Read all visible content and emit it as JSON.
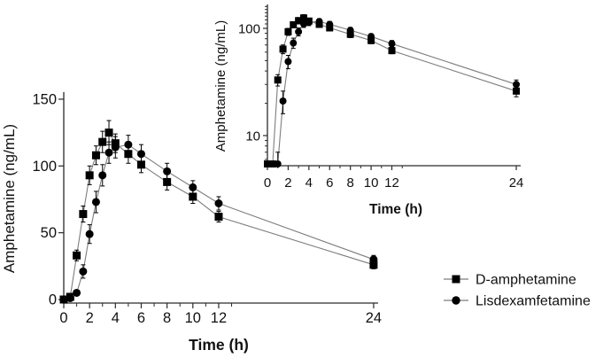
{
  "figure": {
    "background": "#ffffff"
  },
  "chart_data": [
    {
      "id": "main",
      "type": "line",
      "scale": "linear",
      "title": "",
      "xlabel": "Time (h)",
      "ylabel": "Amphetamine (ng/mL)",
      "xlim": [
        0,
        24.3
      ],
      "ylim": [
        0,
        150
      ],
      "x_ticks_major": [
        0,
        2,
        4,
        6,
        8,
        10,
        12,
        24
      ],
      "x_ticks_minor": [
        1,
        3,
        5,
        7,
        9,
        11,
        13
      ],
      "y_ticks_major": [
        0,
        50,
        100,
        150
      ],
      "y_ticks_minor": [],
      "grid": false,
      "x": [
        0,
        0.5,
        1,
        1.5,
        2,
        2.5,
        3,
        3.5,
        4,
        5,
        6,
        8,
        10,
        12,
        24
      ],
      "series": [
        {
          "name": "D-amphetamine",
          "marker": "square",
          "values": [
            0,
            2,
            33,
            64,
            93,
            108,
            118,
            125,
            117,
            109,
            101,
            88,
            77,
            62,
            26
          ],
          "errors": [
            0,
            1,
            4,
            6,
            7,
            7,
            8,
            9,
            7,
            7,
            6,
            6,
            5,
            4,
            3
          ]
        },
        {
          "name": "Lisdexamfetamine",
          "marker": "circle",
          "values": [
            0,
            1,
            5,
            21,
            49,
            73,
            93,
            110,
            114,
            116,
            109,
            96,
            84,
            72,
            30
          ],
          "errors": [
            0,
            1,
            2,
            5,
            7,
            8,
            8,
            8,
            8,
            7,
            7,
            6,
            5,
            5,
            3
          ]
        }
      ]
    },
    {
      "id": "inset",
      "type": "line",
      "scale": "log",
      "title": "",
      "xlabel": "Time (h)",
      "ylabel": "Amphetamine (ng/mL)",
      "xlim": [
        0,
        24.4
      ],
      "ylim": [
        5,
        170
      ],
      "x_ticks_major": [
        0,
        2,
        4,
        6,
        8,
        10,
        12,
        24
      ],
      "x_ticks_minor": [
        1,
        3,
        5,
        7,
        9,
        11,
        13
      ],
      "y_ticks_major": [
        10,
        100
      ],
      "y_ticks_minor": [
        6,
        7,
        8,
        9,
        20,
        30,
        40,
        50,
        60,
        70,
        80,
        90,
        110,
        120,
        130,
        140,
        150,
        160
      ],
      "grid": false,
      "x": [
        0,
        0.5,
        1,
        1.5,
        2,
        2.5,
        3,
        3.5,
        4,
        5,
        6,
        8,
        10,
        12,
        24
      ],
      "series": [
        {
          "name": "D-amphetamine",
          "marker": "square",
          "values": [
            0,
            2,
            33,
            64,
            93,
            108,
            118,
            125,
            117,
            109,
            101,
            88,
            77,
            62,
            26
          ],
          "errors": [
            0,
            1,
            4,
            6,
            7,
            7,
            8,
            9,
            7,
            7,
            6,
            6,
            5,
            4,
            3
          ]
        },
        {
          "name": "Lisdexamfetamine",
          "marker": "circle",
          "values": [
            0,
            1,
            5,
            21,
            49,
            73,
            93,
            110,
            114,
            116,
            109,
            96,
            84,
            72,
            30
          ],
          "errors": [
            0,
            1,
            2,
            5,
            7,
            8,
            8,
            8,
            8,
            7,
            7,
            6,
            5,
            5,
            3
          ]
        }
      ]
    }
  ],
  "legend": {
    "position": "bottom-right",
    "items": [
      {
        "label": "D-amphetamine",
        "marker": "square"
      },
      {
        "label": "Lisdexamfetamine",
        "marker": "circle"
      }
    ]
  },
  "colors": {
    "marker": "#000000",
    "series_line": "#7d7d7d",
    "axis": "#2a2a2a",
    "text": "#111111",
    "background": "#ffffff"
  }
}
